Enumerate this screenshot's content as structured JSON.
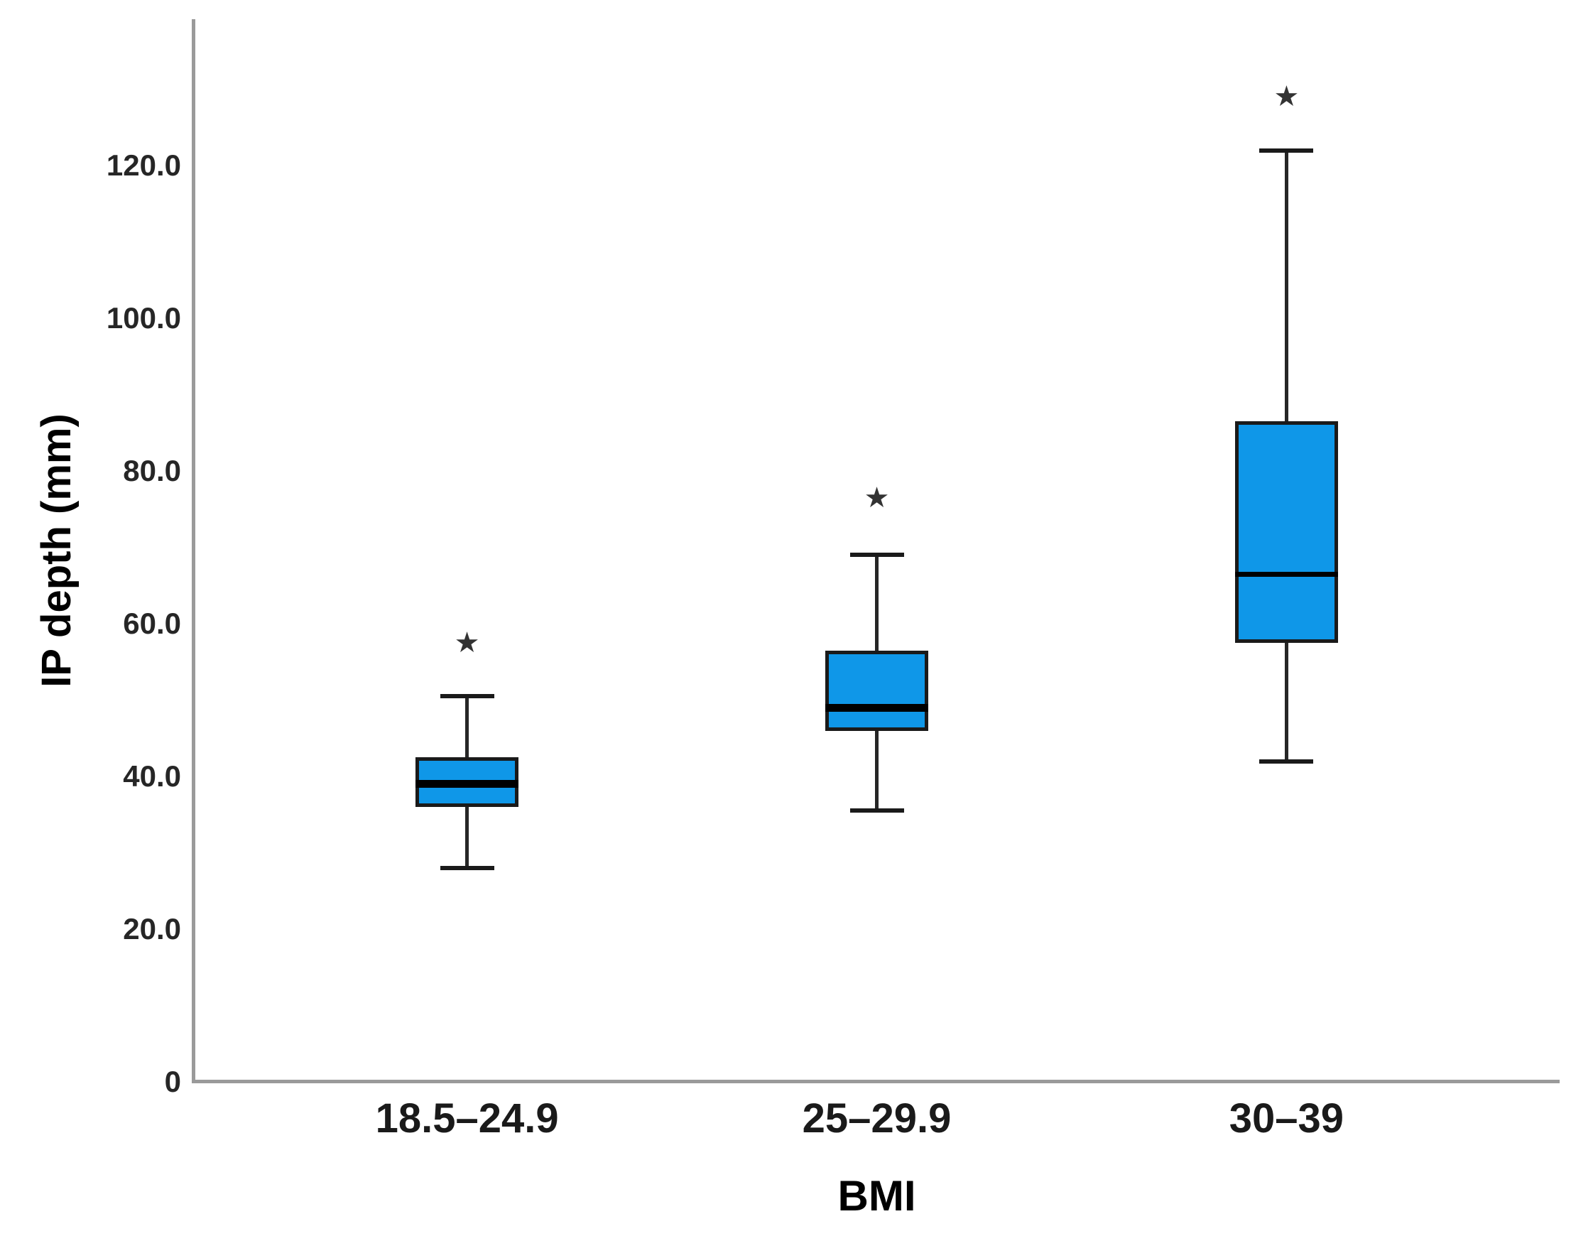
{
  "chart_data": {
    "type": "box",
    "title": "",
    "xlabel": "BMI",
    "ylabel": "IP depth (mm)",
    "ylim": [
      0,
      139
    ],
    "grid": false,
    "legend": "none",
    "yticks": [
      {
        "value": 0,
        "label": "0"
      },
      {
        "value": 20,
        "label": "20.0"
      },
      {
        "value": 40,
        "label": "40.0"
      },
      {
        "value": 60,
        "label": "60.0"
      },
      {
        "value": 80,
        "label": "80.0"
      },
      {
        "value": 100,
        "label": "100.0"
      },
      {
        "value": 120,
        "label": "120.0"
      }
    ],
    "categories": [
      "18.5–24.9",
      "25–29.9",
      "30–39"
    ],
    "series": [
      {
        "category": "18.5–24.9",
        "whisker_low": 28,
        "q1": 36,
        "median": 39,
        "q3": 42.5,
        "whisker_high": 50.5,
        "outliers": [
          57.5
        ]
      },
      {
        "category": "25–29.9",
        "whisker_low": 35.5,
        "q1": 46,
        "median": 49,
        "q3": 56.5,
        "whisker_high": 69,
        "outliers": [
          76.5
        ]
      },
      {
        "category": "30–39",
        "whisker_low": 42,
        "q1": 57.5,
        "median": 66.5,
        "q3": 86.5,
        "whisker_high": 122,
        "outliers": [
          129
        ]
      }
    ],
    "outlier_marker": "★",
    "colors": {
      "box_fill": "#0f97e8",
      "box_border": "#1a1a1a",
      "median": "#000000",
      "whisker": "#262626",
      "axis": "#9a9a9a",
      "text": "#1a1a1a",
      "outlier_marker_color": "#333333"
    }
  }
}
